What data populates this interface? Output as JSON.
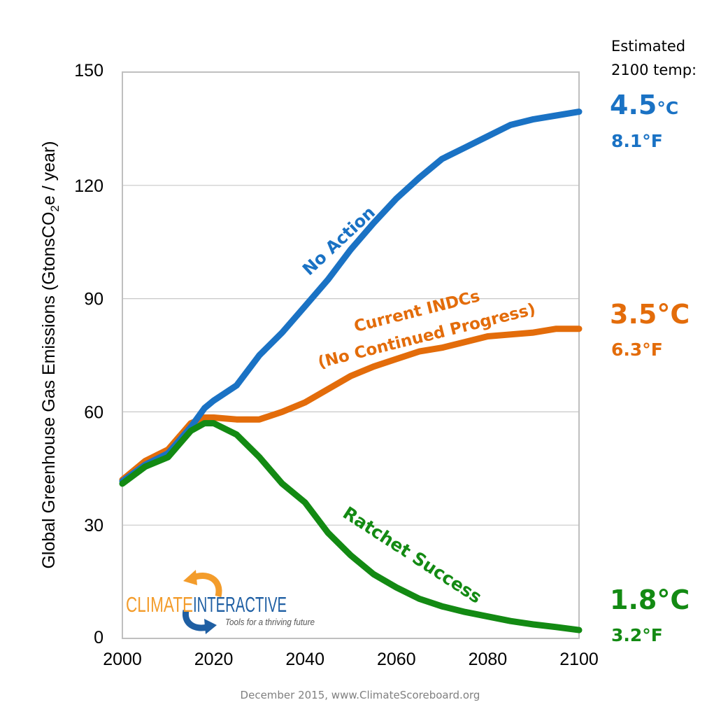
{
  "chart_data": {
    "type": "line",
    "title": "",
    "xlabel": "",
    "ylabel_parts": [
      "Global Greenhouse Gas Emissions  (GtonsCO",
      "2",
      "e / year)"
    ],
    "xlim": [
      2000,
      2100
    ],
    "ylim": [
      0,
      150
    ],
    "x_ticks": [
      "2000",
      "2020",
      "2040",
      "2060",
      "2080",
      "2100"
    ],
    "y_ticks": [
      "0",
      "30",
      "60",
      "90",
      "120",
      "150"
    ],
    "grid": "horizontal",
    "x": [
      2000,
      2005,
      2010,
      2015,
      2018,
      2020,
      2025,
      2030,
      2035,
      2040,
      2045,
      2050,
      2055,
      2060,
      2065,
      2070,
      2075,
      2080,
      2085,
      2090,
      2095,
      2100
    ],
    "series": [
      {
        "name": "No Action",
        "color": "#1a72c4",
        "values": [
          41.6,
          46,
          49,
          56,
          61,
          63,
          67,
          75,
          81,
          88,
          95,
          103,
          110,
          116.5,
          122,
          127,
          130,
          133,
          136,
          137.5,
          138.5,
          139.5
        ]
      },
      {
        "name": "Current INDCs (No Continued Progress)",
        "color": "#e36c0a",
        "values": [
          42,
          47,
          50,
          57,
          58.5,
          58.5,
          58,
          58,
          60,
          62.5,
          66,
          69.5,
          72,
          74,
          76,
          77,
          78.5,
          80,
          80.5,
          81,
          82,
          82
        ]
      },
      {
        "name": "Ratchet Success",
        "color": "#138a13",
        "values": [
          41,
          45.5,
          48,
          55,
          57,
          57,
          54,
          48,
          41,
          36,
          28,
          22,
          17,
          13.5,
          10.5,
          8.5,
          7,
          5.8,
          4.6,
          3.7,
          3,
          2.2
        ]
      }
    ],
    "annotations": {
      "no_action": "No Action",
      "indc_line1": "Current INDCs",
      "indc_line2": "(No Continued Progress)",
      "ratchet": "Ratchet Success"
    }
  },
  "temps": {
    "header_line1": "Estimated",
    "header_line2": "2100 temp:",
    "no_action_c": "4.5",
    "no_action_c_unit": "°C",
    "no_action_f": "8.1°F",
    "indc_c": "3.5°C",
    "indc_f": "6.3°F",
    "ratchet_c": "1.8°C",
    "ratchet_f": "3.2°F"
  },
  "logo": {
    "word1": "CLIMATE",
    "word2": "INTERACTIVE",
    "tagline": "Tools for a thriving future"
  },
  "footer": "December 2015, www.ClimateScoreboard.org"
}
